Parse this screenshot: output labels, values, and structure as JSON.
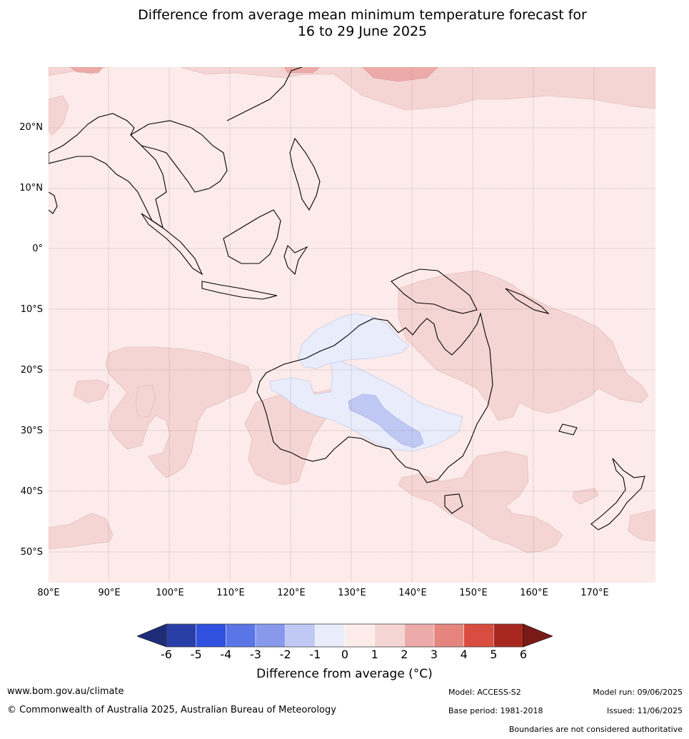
{
  "title_line1": "Difference from average mean minimum temperature forecast for",
  "title_line2": "16 to 29 June 2025",
  "lat_labels": [
    "20°N",
    "10°N",
    "0°",
    "10°S",
    "20°S",
    "30°S",
    "40°S",
    "50°S"
  ],
  "lon_labels": [
    "80°E",
    "90°E",
    "100°E",
    "110°E",
    "120°E",
    "130°E",
    "140°E",
    "150°E",
    "160°E",
    "170°E"
  ],
  "colorbar": {
    "ticks": [
      "-6",
      "-5",
      "-4",
      "-3",
      "-2",
      "-1",
      "0",
      "1",
      "2",
      "3",
      "4",
      "5",
      "6"
    ],
    "colors": [
      "#2a3ea8",
      "#3050e0",
      "#5a75e6",
      "#8899ec",
      "#c0c8f4",
      "#e8ecfb",
      "#fdecea",
      "#f5d5d3",
      "#ecaba8",
      "#e6857e",
      "#d94c40",
      "#a8281f"
    ],
    "under_color": "#1f2d78",
    "over_color": "#7a1a17",
    "label": "Difference from average (°C)"
  },
  "footer": {
    "website": "www.bom.gov.au/climate",
    "copyright": "© Commonwealth of Australia 2025, Australian Bureau of Meteorology",
    "model": "Model: ACCESS-S2",
    "base_period": "Base period: 1981-2018",
    "model_run": "Model run: 09/06/2025",
    "issued": "Issued: 11/06/2025",
    "boundaries_note": "Boundaries are not considered authoritative"
  }
}
